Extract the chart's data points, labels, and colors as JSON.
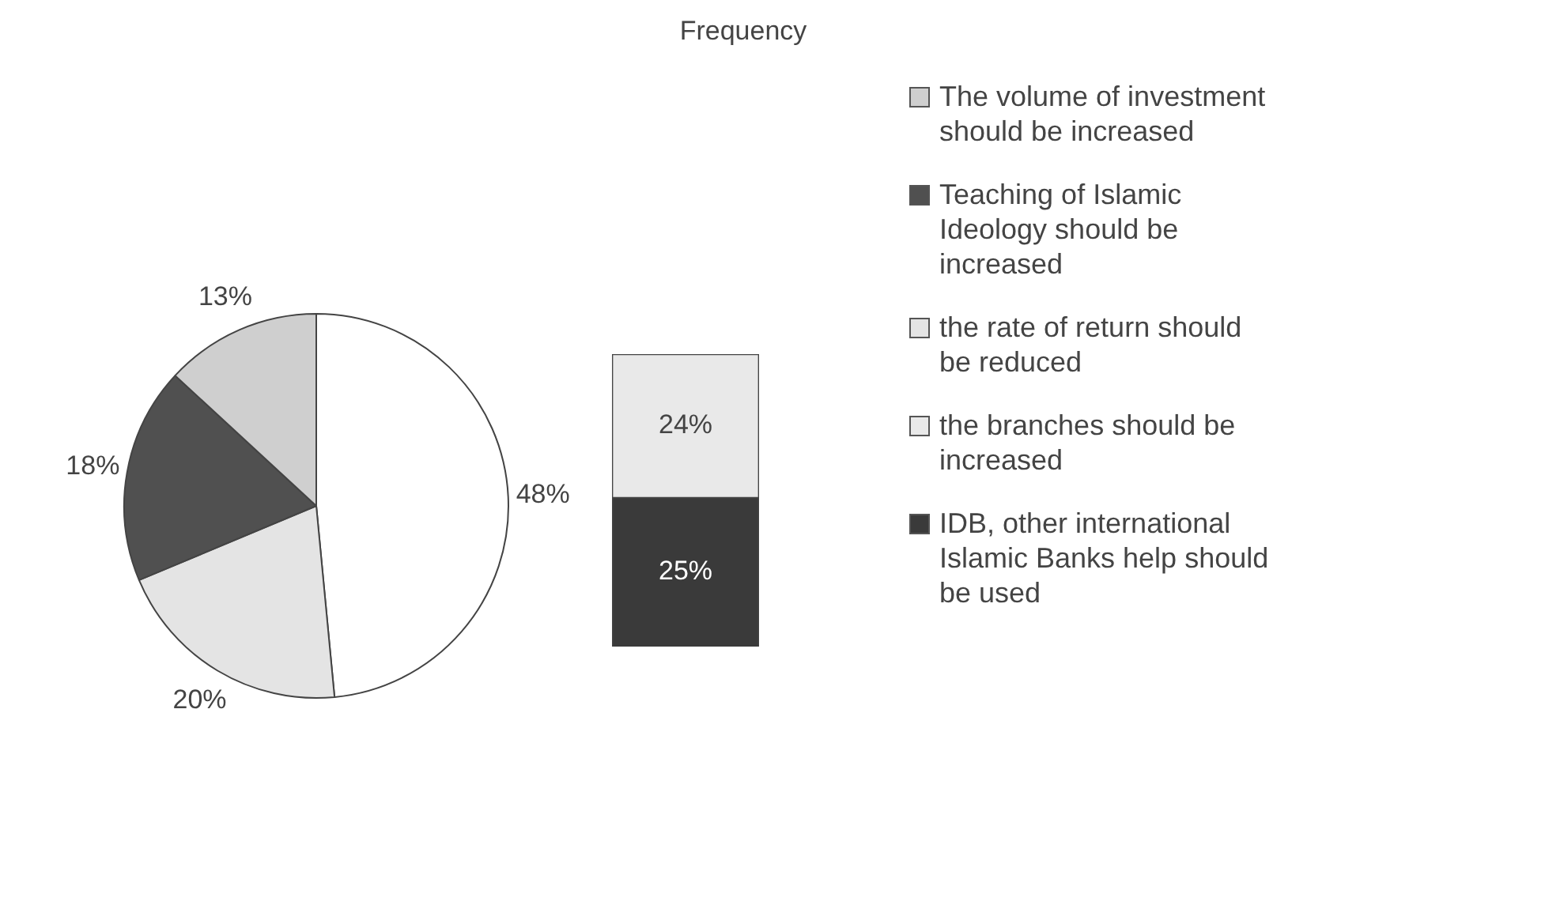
{
  "chart_data": [
    {
      "type": "pie",
      "title": "Frequency",
      "legend": "right",
      "categories": [
        null,
        "the rate of return should be reduced",
        "Teaching of Islamic Ideology should be increased",
        "The volume of investment should be increased"
      ],
      "values": [
        48,
        20,
        18,
        13
      ],
      "value_labels": [
        "48%",
        "20%",
        "18%",
        "13%"
      ],
      "colors": [
        "#ffffff",
        "#e4e4e4",
        "#505050",
        "#cfcfcf"
      ]
    },
    {
      "type": "bar",
      "stacked": true,
      "legend": "right",
      "tick_labels": false,
      "categories": [
        null
      ],
      "series": [
        {
          "name": "IDB, other international Islamic Banks help should be used",
          "color": "#3a3a3a",
          "values": [
            25
          ],
          "value_labels": [
            "25%"
          ]
        },
        {
          "name": "the branches should be increased",
          "color": "#e9e9e9",
          "values": [
            24
          ],
          "value_labels": [
            "24%"
          ]
        }
      ]
    }
  ]
}
